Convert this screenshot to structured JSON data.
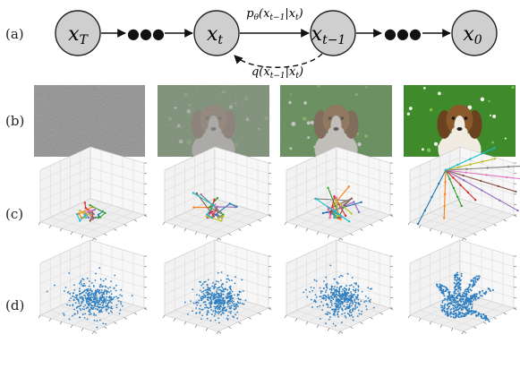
{
  "row_labels": [
    "(a)",
    "(b)",
    "(c)",
    "(d)"
  ],
  "chain": {
    "nodes": [
      {
        "base": "x",
        "sub": "T"
      },
      {
        "base": "x",
        "sub": "t"
      },
      {
        "base": "x",
        "sub": "t−1"
      },
      {
        "base": "x",
        "sub": "0"
      }
    ],
    "dots": "●●●",
    "reverse_label": {
      "func": "p",
      "param": "θ",
      "arg": "(x",
      "arg_sub": "t−1",
      "given": "|x",
      "given_sub": "t",
      "close": ")"
    },
    "forward_label": {
      "func": "q",
      "arg": "(x",
      "arg_sub": "t−1",
      "given": "|x",
      "given_sub": "t",
      "close": ")"
    }
  },
  "images": {
    "noise_levels": [
      1.0,
      0.72,
      0.45,
      0.0
    ],
    "colors": {
      "noise": "#8a8a8a",
      "grass": "#3f8a2a",
      "dog_brown": "#8b5a2b",
      "dog_white": "#f1ece2"
    }
  },
  "trajectories": {
    "series_colors": [
      "#1f77b4",
      "#ff7f0e",
      "#2ca02c",
      "#d62728",
      "#9467bd",
      "#8c564b",
      "#e377c2",
      "#7f7f7f",
      "#bcbd22",
      "#17becf"
    ]
  },
  "point_clouds": {
    "point_color": "#2f7fc1",
    "final_shape": "hand"
  }
}
